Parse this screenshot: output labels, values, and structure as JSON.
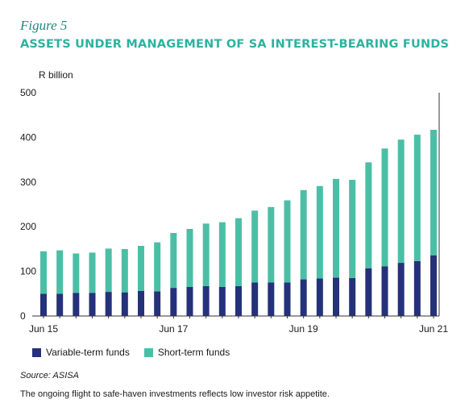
{
  "figure_label": "Figure 5",
  "title": "ASSETS UNDER MANAGEMENT OF SA INTEREST-BEARING FUNDS",
  "source": "Source: ASISA",
  "caption": "The ongoing flight to safe-haven investments reflects low investor risk appetite.",
  "colors": {
    "variable": "#25317a",
    "short": "#4bbfa5",
    "title": "#2bb3a0",
    "figure_label": "#1f8a80"
  },
  "chart_data": {
    "type": "bar",
    "stacked": true,
    "ylabel": "R billion",
    "ylim": [
      0,
      500
    ],
    "yticks": [
      0,
      100,
      200,
      300,
      400,
      500
    ],
    "grid": false,
    "x_tick_labels": [
      {
        "index": 0,
        "label": "Jun 15"
      },
      {
        "index": 8,
        "label": "Jun 17"
      },
      {
        "index": 16,
        "label": "Jun 19"
      },
      {
        "index": 24,
        "label": "Jun 21"
      }
    ],
    "series": [
      {
        "name": "Variable-term funds",
        "values": [
          50,
          50,
          52,
          52,
          54,
          53,
          56,
          55,
          63,
          65,
          67,
          65,
          67,
          75,
          75,
          75,
          82,
          84,
          86,
          85,
          107,
          111,
          119,
          123,
          136
        ]
      },
      {
        "name": "Short-term funds",
        "values": [
          95,
          97,
          88,
          90,
          97,
          97,
          101,
          110,
          123,
          130,
          140,
          145,
          152,
          161,
          169,
          184,
          200,
          207,
          221,
          220,
          237,
          264,
          276,
          283,
          281
        ]
      }
    ],
    "legend": [
      "Variable-term funds",
      "Short-term funds"
    ],
    "legend_position": "bottom-left"
  }
}
